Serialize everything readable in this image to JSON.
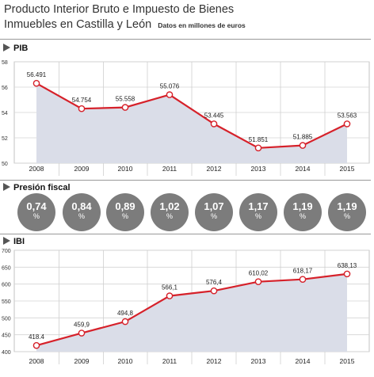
{
  "title": "Producto Interior Bruto e Impuesto de Bienes Inmuebles en Castilla y León",
  "title_line1": "Producto Interior Bruto e Impuesto de Bienes",
  "title_line2": "Inmuebles en Castilla y León",
  "subnote": "Datos en millones de euros",
  "colors": {
    "line": "#d6212a",
    "area": "#dadde8",
    "circle": "#7c7c7c",
    "triangle": "#555555"
  },
  "chart_data": [
    {
      "type": "area",
      "title": "PIB",
      "categories": [
        "2008",
        "2009",
        "2010",
        "2011",
        "2012",
        "2013",
        "2014",
        "2015"
      ],
      "values": [
        56.491,
        54.754,
        55.558,
        55.076,
        53.445,
        51.851,
        51.885,
        53.563
      ],
      "y_values": [
        56.3,
        54.3,
        54.4,
        55.4,
        53.1,
        51.2,
        51.4,
        53.1
      ],
      "labels": [
        "56.491",
        "54.754",
        "55.558",
        "55.076",
        "53.445",
        "51.851",
        "51.885",
        "53.563"
      ],
      "ylim": [
        50,
        58
      ],
      "yticks": [
        "50",
        "52",
        "54",
        "56",
        "58"
      ],
      "grid": true
    },
    {
      "type": "table",
      "title": "Presión fiscal",
      "categories": [
        "2008",
        "2009",
        "2010",
        "2011",
        "2012",
        "2013",
        "2014",
        "2015"
      ],
      "values": [
        "0,74",
        "0,84",
        "0,89",
        "1,02",
        "1,07",
        "1,17",
        "1,19",
        "1,19"
      ],
      "unit": "%"
    },
    {
      "type": "area",
      "title": "IBI",
      "categories": [
        "2008",
        "2009",
        "2010",
        "2011",
        "2012",
        "2013",
        "2014",
        "2015"
      ],
      "values": [
        418.4,
        459.9,
        494.8,
        566.1,
        576.4,
        610.02,
        618.17,
        638.13
      ],
      "y_values": [
        418.4,
        455,
        489,
        565,
        580,
        607,
        614,
        630
      ],
      "labels": [
        "418.4",
        "459,9",
        "494,8",
        "566,1",
        "576,4",
        "610,02",
        "618,17",
        "638,13"
      ],
      "ylim": [
        400,
        700
      ],
      "yticks": [
        "400",
        "450",
        "500",
        "550",
        "600",
        "650",
        "700"
      ],
      "grid": true
    }
  ]
}
